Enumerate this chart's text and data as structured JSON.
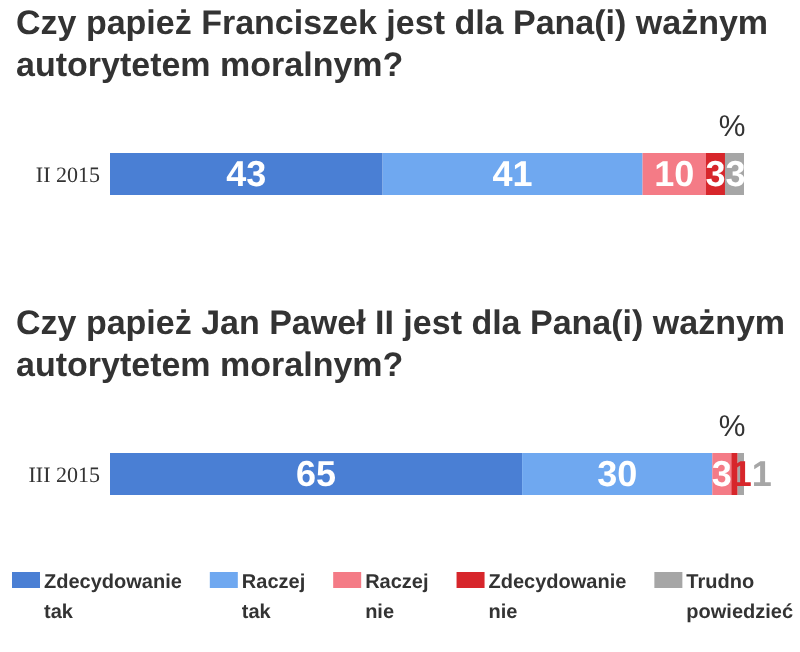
{
  "chart_data": [
    {
      "type": "bar",
      "orientation": "horizontal",
      "stacked": true,
      "title": "Czy papież Franciszek jest dla Pana(i) ważnym autorytetem moralnym?",
      "categories": [
        "II 2015"
      ],
      "xlim": [
        0,
        100
      ],
      "data_labels": true,
      "legend": false,
      "annotations": [
        "%"
      ],
      "series": [
        {
          "color": "#4a7fd4",
          "values": [
            43
          ]
        },
        {
          "color": "#6fa8f0",
          "values": [
            41
          ]
        },
        {
          "color": "#f47b86",
          "values": [
            10
          ]
        },
        {
          "color": "#d7262b",
          "values": [
            3
          ]
        },
        {
          "color": "#a6a6a6",
          "values": [
            3
          ]
        }
      ]
    },
    {
      "type": "bar",
      "orientation": "horizontal",
      "stacked": true,
      "title": "Czy papież Jan Paweł II jest dla Pana(i) ważnym autorytetem moralnym?",
      "categories": [
        "III 2015"
      ],
      "xlim": [
        0,
        100
      ],
      "data_labels": true,
      "legend": "bottom",
      "annotations": [
        "%"
      ],
      "series": [
        {
          "name": "Zdecydowanie tak",
          "color": "#4a7fd4",
          "values": [
            65
          ]
        },
        {
          "name": "Raczej tak",
          "color": "#6fa8f0",
          "values": [
            30
          ]
        },
        {
          "name": "Raczej nie",
          "color": "#f47b86",
          "values": [
            3
          ]
        },
        {
          "name": "Zdecydowanie nie",
          "color": "#d7262b",
          "values": [
            1
          ]
        },
        {
          "name": "Trudno powiedzieć",
          "color": "#a6a6a6",
          "values": [
            1
          ]
        }
      ]
    }
  ]
}
